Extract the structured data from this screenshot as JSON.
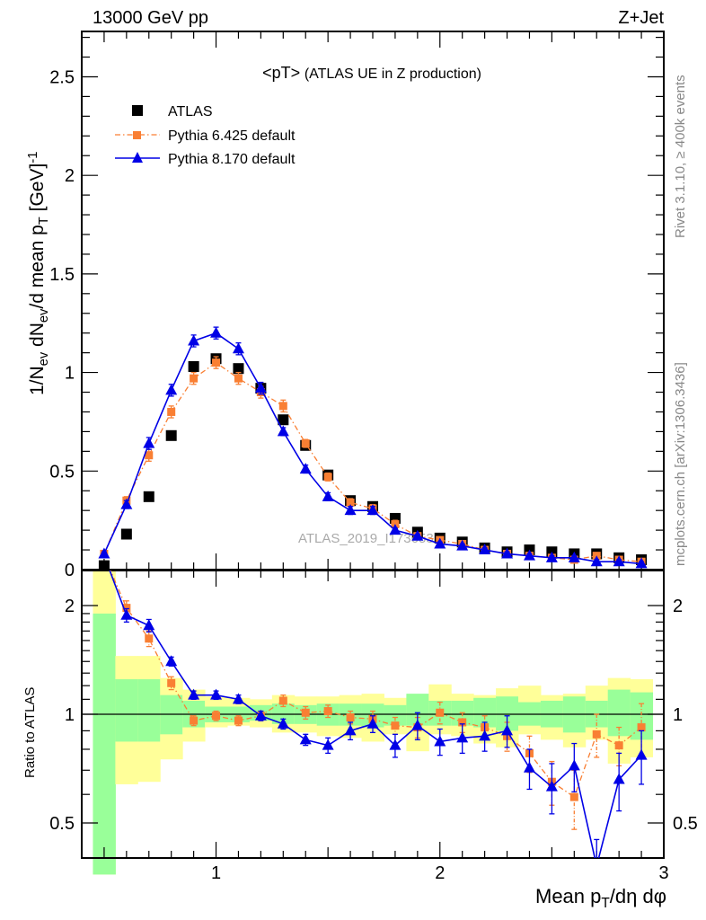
{
  "header": {
    "left": "13000 GeV pp",
    "right": "Z+Jet",
    "side_top": "Rivet 3.1.10, ≥ 400k events",
    "side_bottom": "mcplots.cern.ch [arXiv:1306.3436]",
    "watermark": "ATLAS_2019_I1736531"
  },
  "colors": {
    "atlas": "#000000",
    "py6": "#f97f33",
    "py8": "#0000e6",
    "band_total": "#ffff99",
    "band_stat": "#99ff99"
  },
  "chart_data": [
    {
      "type": "scatter",
      "title": "<pT>",
      "subtitle": "(ATLAS UE in Z production)",
      "ylabel_parts": [
        [
          "1/N",
          ""
        ],
        [
          "ev",
          "sub"
        ],
        [
          " dN",
          ""
        ],
        [
          "ev",
          "sub"
        ],
        [
          "/d mean p",
          ""
        ],
        [
          "T",
          "sub"
        ],
        [
          " [GeV]",
          ""
        ],
        [
          "-1",
          "sup"
        ]
      ],
      "xlim": [
        0.4,
        3.0
      ],
      "ylim": [
        0,
        2.73
      ],
      "yticks": [
        "0",
        "0.5",
        "1",
        "1.5",
        "2",
        "2.5"
      ],
      "legend_position": "top-left",
      "x": [
        0.5,
        0.6,
        0.7,
        0.8,
        0.9,
        1.0,
        1.1,
        1.2,
        1.3,
        1.4,
        1.5,
        1.6,
        1.7,
        1.8,
        1.9,
        2.0,
        2.1,
        2.2,
        2.3,
        2.4,
        2.5,
        2.6,
        2.7,
        2.8,
        2.9
      ],
      "series": [
        {
          "name": "ATLAS",
          "key": "atlas",
          "marker": "square",
          "values": [
            0.02,
            0.18,
            0.37,
            0.68,
            1.03,
            1.07,
            1.02,
            0.92,
            0.76,
            0.63,
            0.48,
            0.35,
            0.32,
            0.26,
            0.19,
            0.16,
            0.14,
            0.11,
            0.09,
            0.1,
            0.09,
            0.08,
            0.08,
            0.06,
            0.05
          ]
        },
        {
          "name": "Pythia 6.425 default",
          "key": "py6",
          "marker": "square-small",
          "line": "dashdot",
          "values": [
            0.08,
            0.35,
            0.58,
            0.8,
            0.97,
            1.05,
            0.97,
            0.9,
            0.83,
            0.64,
            0.47,
            0.34,
            0.31,
            0.23,
            0.17,
            0.15,
            0.13,
            0.1,
            0.08,
            0.07,
            0.06,
            0.05,
            0.07,
            0.05,
            0.04
          ],
          "errors": [
            0.01,
            0.02,
            0.03,
            0.03,
            0.03,
            0.03,
            0.03,
            0.03,
            0.03,
            0.02,
            0.02,
            0.02,
            0.02,
            0.02,
            0.01,
            0.01,
            0.01,
            0.01,
            0.01,
            0.01,
            0.01,
            0.01,
            0.01,
            0.01,
            0.01
          ]
        },
        {
          "name": "Pythia 8.170 default",
          "key": "py8",
          "marker": "triangle",
          "line": "solid",
          "values": [
            0.08,
            0.33,
            0.64,
            0.91,
            1.16,
            1.2,
            1.12,
            0.92,
            0.7,
            0.51,
            0.37,
            0.3,
            0.3,
            0.2,
            0.17,
            0.13,
            0.12,
            0.1,
            0.08,
            0.07,
            0.06,
            0.06,
            0.04,
            0.04,
            0.03
          ],
          "errors": [
            0.01,
            0.02,
            0.03,
            0.03,
            0.03,
            0.03,
            0.03,
            0.03,
            0.02,
            0.02,
            0.02,
            0.02,
            0.02,
            0.01,
            0.01,
            0.01,
            0.01,
            0.01,
            0.01,
            0.01,
            0.01,
            0.01,
            0.01,
            0.01,
            0.01
          ]
        }
      ]
    },
    {
      "type": "scatter",
      "ylabel": "Ratio to ATLAS",
      "xlabel_parts": [
        [
          "Mean p",
          ""
        ],
        [
          "T",
          "sub"
        ],
        [
          "/dη dφ",
          ""
        ]
      ],
      "yscale": "log",
      "ylim": [
        0.4,
        2.5
      ],
      "xlim": [
        0.4,
        3.0
      ],
      "xticks": [
        "1",
        "2",
        "3"
      ],
      "yticks": [
        "0.5",
        "1",
        "2"
      ],
      "bin_edges": [
        0.45,
        0.55,
        0.65,
        0.75,
        0.85,
        0.95,
        1.05,
        1.15,
        1.25,
        1.35,
        1.45,
        1.55,
        1.65,
        1.75,
        1.85,
        1.95,
        2.05,
        2.15,
        2.25,
        2.35,
        2.45,
        2.55,
        2.65,
        2.75,
        2.85,
        2.95
      ],
      "band_total_hi": [
        2.5,
        1.45,
        1.45,
        1.26,
        1.17,
        1.12,
        1.11,
        1.1,
        1.13,
        1.12,
        1.12,
        1.13,
        1.14,
        1.11,
        1.11,
        1.21,
        1.14,
        1.13,
        1.18,
        1.2,
        1.13,
        1.14,
        1.2,
        1.26,
        1.25
      ],
      "band_total_lo": [
        0.35,
        0.64,
        0.65,
        0.75,
        0.84,
        0.92,
        0.93,
        0.92,
        0.89,
        0.89,
        0.87,
        0.86,
        0.84,
        0.88,
        0.79,
        0.88,
        0.87,
        0.83,
        0.81,
        0.88,
        0.85,
        0.81,
        0.85,
        0.73,
        0.76
      ],
      "band_stat_hi": [
        1.9,
        1.25,
        1.25,
        1.13,
        1.09,
        1.05,
        1.05,
        1.06,
        1.07,
        1.06,
        1.07,
        1.07,
        1.07,
        1.06,
        1.14,
        1.09,
        1.09,
        1.11,
        1.12,
        1.08,
        1.09,
        1.12,
        1.09,
        1.17,
        1.15
      ],
      "band_stat_lo": [
        0.35,
        0.84,
        0.84,
        0.88,
        0.92,
        0.95,
        0.95,
        0.96,
        0.94,
        0.94,
        0.93,
        0.93,
        0.92,
        0.93,
        0.93,
        0.93,
        0.93,
        0.92,
        0.9,
        0.93,
        0.92,
        0.89,
        0.92,
        0.87,
        0.85
      ],
      "x": [
        0.6,
        0.7,
        0.8,
        0.9,
        1.0,
        1.1,
        1.2,
        1.3,
        1.4,
        1.5,
        1.6,
        1.7,
        1.8,
        1.9,
        2.0,
        2.1,
        2.2,
        2.3,
        2.4,
        2.5,
        2.6,
        2.7,
        2.8,
        2.9
      ],
      "series": [
        {
          "name": "Pythia 6.425 default",
          "key": "py6",
          "values": [
            1.97,
            1.62,
            1.22,
            0.96,
            0.99,
            0.96,
            0.99,
            1.09,
            1.01,
            1.02,
            0.98,
            0.97,
            0.93,
            0.92,
            1.01,
            0.95,
            0.92,
            0.87,
            0.78,
            0.65,
            0.59,
            0.88,
            0.82,
            0.92
          ],
          "errors": [
            0.09,
            0.08,
            0.05,
            0.03,
            0.03,
            0.03,
            0.03,
            0.04,
            0.04,
            0.04,
            0.04,
            0.05,
            0.05,
            0.06,
            0.07,
            0.06,
            0.07,
            0.08,
            0.09,
            0.09,
            0.11,
            0.12,
            0.1,
            0.15
          ]
        },
        {
          "name": "Pythia 8.170 default",
          "key": "py8",
          "values": [
            1.88,
            1.76,
            1.4,
            1.13,
            1.13,
            1.1,
            0.99,
            0.94,
            0.85,
            0.82,
            0.9,
            0.94,
            0.82,
            0.93,
            0.84,
            0.86,
            0.87,
            0.9,
            0.71,
            0.63,
            0.72,
            0.38,
            0.66,
            0.77
          ],
          "errors": [
            0.08,
            0.07,
            0.04,
            0.03,
            0.03,
            0.03,
            0.03,
            0.03,
            0.03,
            0.04,
            0.05,
            0.05,
            0.06,
            0.08,
            0.07,
            0.08,
            0.08,
            0.09,
            0.09,
            0.1,
            0.11,
            0.07,
            0.12,
            0.13
          ]
        }
      ]
    }
  ]
}
